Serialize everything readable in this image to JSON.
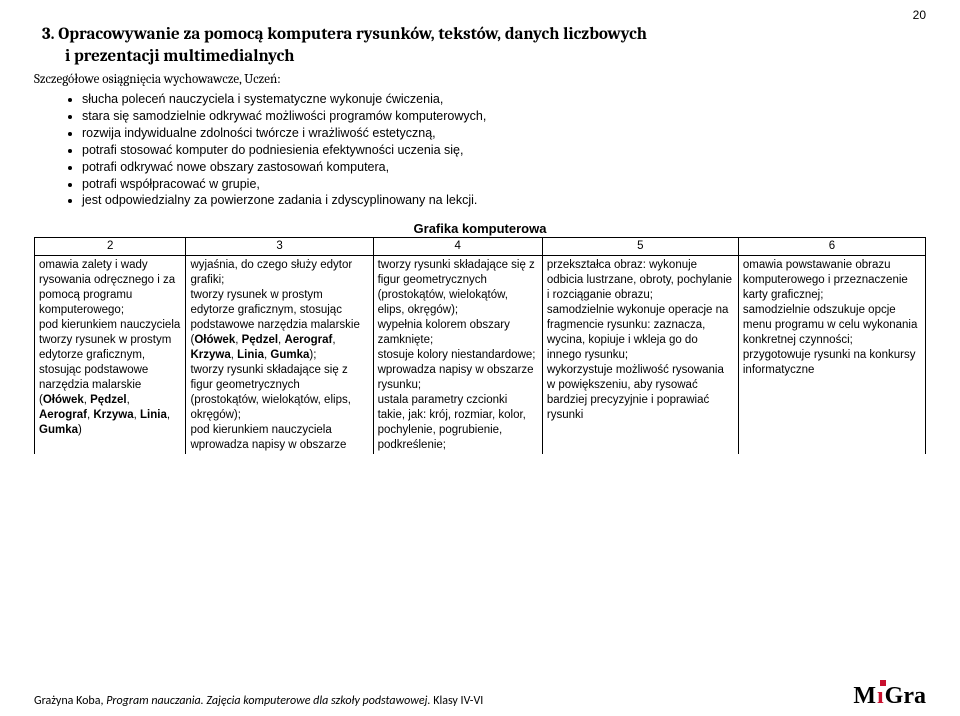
{
  "page_number": "20",
  "section": {
    "number": "3.",
    "title_line1": "Opracowywanie za pomocą komputera rysunków, tekstów, danych liczbowych",
    "title_line2": "i prezentacji multimedialnych",
    "subhead": "Szczegółowe osiągnięcia wychowawcze, Uczeń:"
  },
  "bullets": [
    "słucha poleceń nauczyciela i systematyczne wykonuje ćwiczenia,",
    "stara się samodzielnie odkrywać możliwości programów komputerowych,",
    "rozwija indywidualne zdolności twórcze i wrażliwość estetyczną,",
    "potrafi stosować komputer do podniesienia efektywności uczenia się,",
    "potrafi odkrywać nowe obszary zastosowań komputera,",
    "potrafi współpracować w grupie,",
    "jest odpowiedzialny za powierzone zadania i zdyscyplinowany na lekcji."
  ],
  "table": {
    "title": "Grafika komputerowa",
    "headers": [
      "2",
      "3",
      "4",
      "5",
      "6"
    ],
    "col_widths": [
      "17%",
      "21%",
      "19%",
      "22%",
      "21%"
    ],
    "row": [
      "omawia zalety i wady rysowania odręcznego i za pomocą programu komputerowego;\npod kierunkiem nauczyciela tworzy rysunek w prostym edytorze graficznym, stosując podstawowe narzędzia malarskie (<b>Ołówek</b>, <b>Pędzel</b>, <b>Aerograf</b>, <b>Krzywa</b>, <b>Linia</b>, <b>Gumka</b>)",
      "wyjaśnia, do czego służy edytor grafiki;\ntworzy rysunek w prostym edytorze graficznym, stosując podstawowe narzędzia malarskie (<b>Ołówek</b>, <b>Pędzel</b>, <b>Aerograf</b>, <b>Krzywa</b>, <b>Linia</b>, <b>Gumka</b>);\ntworzy rysunki składające się z figur geometrycznych (prostokątów, wielokątów, elips, okręgów);\npod kierunkiem nauczyciela wprowadza napisy w obszarze",
      "tworzy rysunki składające się z figur geometrycznych (prostokątów, wielokątów, elips, okręgów);\nwypełnia kolorem obszary zamknięte;\nstosuje kolory niestandardowe;\nwprowadza napisy w obszarze rysunku;\nustala parametry czcionki takie, jak: krój, rozmiar, kolor, pochylenie, pogrubienie, podkreślenie;",
      "przekształca obraz: wykonuje odbicia lustrzane, obroty, pochylanie i rozciąganie obrazu;\nsamodzielnie wykonuje operacje na fragmencie rysunku: zaznacza, wycina, kopiuje i wkleja go do innego rysunku;\nwykorzystuje możliwość rysowania w powiększeniu, aby rysować bardziej precyzyjnie i poprawiać rysunki",
      "omawia powstawanie obrazu komputerowego i przeznaczenie karty graficznej;\nsamodzielnie odszukuje opcje menu programu w celu wykonania konkretnej czynności;\nprzygotowuje rysunki na konkursy informatyczne"
    ]
  },
  "footer": {
    "author": "Grażyna Koba,",
    "title": "Program nauczania. Zajęcia komputerowe dla szkoły podstawowej.",
    "grade": "Klasy IV-VI",
    "logo": {
      "M": "M",
      "i": "ı",
      "G": "G",
      "r": "r",
      "a": "a"
    }
  },
  "colors": {
    "text": "#000000",
    "background": "#ffffff",
    "accent": "#c8102e",
    "border": "#000000"
  }
}
